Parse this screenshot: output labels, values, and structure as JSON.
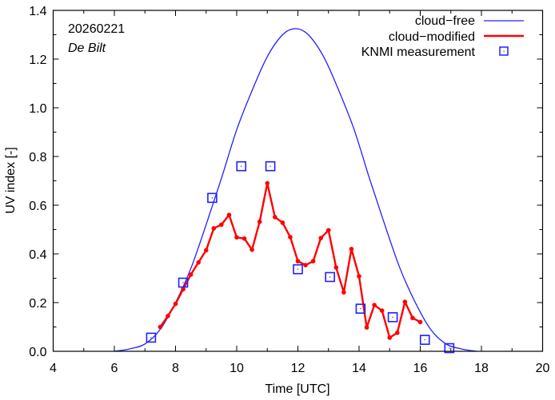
{
  "chart_data": {
    "type": "line",
    "xlabel": "Time  [UTC]",
    "ylabel": "UV index  [-]",
    "xlim": [
      4,
      20
    ],
    "ylim": [
      0.0,
      1.4
    ],
    "x_ticks": [
      4,
      6,
      8,
      10,
      12,
      14,
      16,
      18,
      20
    ],
    "x_tick_labels": [
      "4",
      "6",
      "8",
      "10",
      "12",
      "14",
      "16",
      "18",
      "20"
    ],
    "x_minor_ticks": [
      5,
      7,
      9,
      11,
      13,
      15,
      17,
      19
    ],
    "y_ticks": [
      0.0,
      0.2,
      0.4,
      0.6,
      0.8,
      1.0,
      1.2,
      1.4
    ],
    "y_tick_labels": [
      "0.0",
      "0.2",
      "0.4",
      "0.6",
      "0.8",
      "1.0",
      "1.2",
      "1.4"
    ],
    "y_minor_ticks": [
      0.1,
      0.3,
      0.5,
      0.7,
      0.9,
      1.1,
      1.3
    ],
    "grid": false,
    "legend_position": "top-right",
    "annotations": [
      "20260221",
      "De Bilt"
    ],
    "colors": {
      "cloud_free": "#2020ff",
      "cloud_modified": "#ff0000",
      "measurement": "#2020ff",
      "axis": "#000000"
    },
    "series": [
      {
        "name": "cloud−free",
        "style": "line",
        "x": [
          6.0,
          6.5,
          7.0,
          7.5,
          8.0,
          8.5,
          9.0,
          9.5,
          10.0,
          10.5,
          11.0,
          11.5,
          11.92,
          12.34,
          12.84,
          13.34,
          13.84,
          14.34,
          14.84,
          15.34,
          15.84,
          16.34,
          16.84,
          17.34,
          17.84
        ],
        "values": [
          0.0,
          0.01,
          0.03,
          0.09,
          0.2,
          0.34,
          0.52,
          0.71,
          0.91,
          1.07,
          1.21,
          1.3,
          1.325,
          1.3,
          1.21,
          1.07,
          0.91,
          0.71,
          0.52,
          0.34,
          0.2,
          0.09,
          0.03,
          0.01,
          0.0
        ]
      },
      {
        "name": "cloud−modified",
        "style": "line-points",
        "x": [
          7.5,
          7.75,
          8.0,
          8.25,
          8.5,
          8.75,
          9.0,
          9.25,
          9.5,
          9.75,
          10.0,
          10.25,
          10.5,
          10.75,
          11.0,
          11.25,
          11.5,
          11.75,
          12.0,
          12.25,
          12.5,
          12.75,
          13.0,
          13.25,
          13.5,
          13.75,
          14.0,
          14.25,
          14.5,
          14.75,
          15.0,
          15.25,
          15.5,
          15.75,
          16.0
        ],
        "values": [
          0.1,
          0.145,
          0.195,
          0.255,
          0.315,
          0.365,
          0.415,
          0.505,
          0.52,
          0.56,
          0.468,
          0.463,
          0.417,
          0.532,
          0.69,
          0.551,
          0.528,
          0.469,
          0.37,
          0.354,
          0.37,
          0.465,
          0.497,
          0.344,
          0.242,
          0.42,
          0.308,
          0.098,
          0.19,
          0.167,
          0.056,
          0.076,
          0.203,
          0.137,
          0.12
        ]
      },
      {
        "name": "KNMI measurement",
        "style": "markers",
        "x": [
          7.2,
          8.25,
          9.2,
          10.15,
          11.1,
          12.0,
          13.05,
          14.05,
          15.1,
          16.15,
          16.95
        ],
        "values": [
          0.056,
          0.282,
          0.63,
          0.76,
          0.76,
          0.337,
          0.305,
          0.175,
          0.14,
          0.047,
          0.013
        ]
      }
    ]
  }
}
